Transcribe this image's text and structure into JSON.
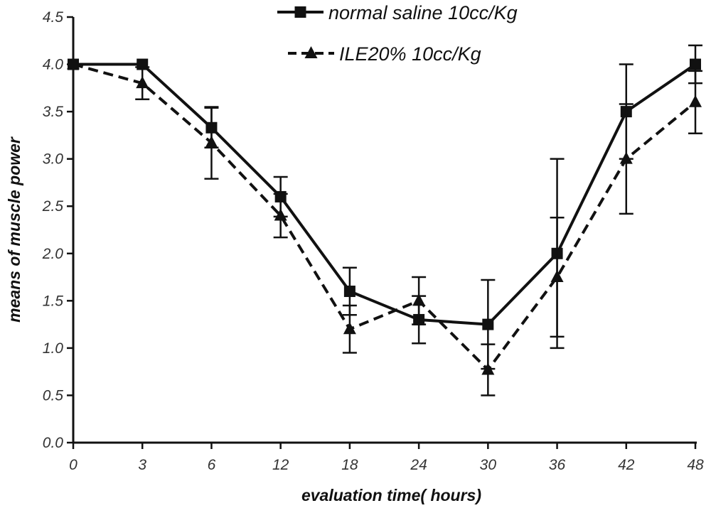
{
  "chart_data": {
    "type": "line",
    "title": "",
    "xlabel": "evaluation time( hours)",
    "ylabel": "means of muscle power",
    "categories": [
      "0",
      "3",
      "6",
      "12",
      "18",
      "24",
      "30",
      "36",
      "42",
      "48"
    ],
    "ylim": [
      0.0,
      4.5
    ],
    "yticks": [
      "0.0",
      "0.5",
      "1.0",
      "1.5",
      "2.0",
      "2.5",
      "3.0",
      "3.5",
      "4.0",
      "4.5"
    ],
    "grid": false,
    "legend_position": "top",
    "series": [
      {
        "name": "normal saline 10cc/Kg",
        "marker": "square",
        "line": "solid",
        "color": "#111111",
        "values": [
          4.0,
          4.0,
          3.33,
          2.6,
          1.6,
          1.3,
          1.25,
          2.0,
          3.5,
          4.0
        ],
        "error": [
          0,
          0,
          0.21,
          0.21,
          0.25,
          0.25,
          0.47,
          1.0,
          0.5,
          0.2
        ]
      },
      {
        "name": "ILE20% 10cc/Kg",
        "marker": "triangle",
        "line": "dashed",
        "color": "#111111",
        "values": [
          4.0,
          3.8,
          3.17,
          2.4,
          1.2,
          1.5,
          0.77,
          1.75,
          3.0,
          3.6
        ],
        "error": [
          0,
          0.17,
          0.38,
          0.23,
          0.25,
          0.25,
          0.27,
          0.63,
          0.58,
          0.33
        ]
      }
    ]
  }
}
